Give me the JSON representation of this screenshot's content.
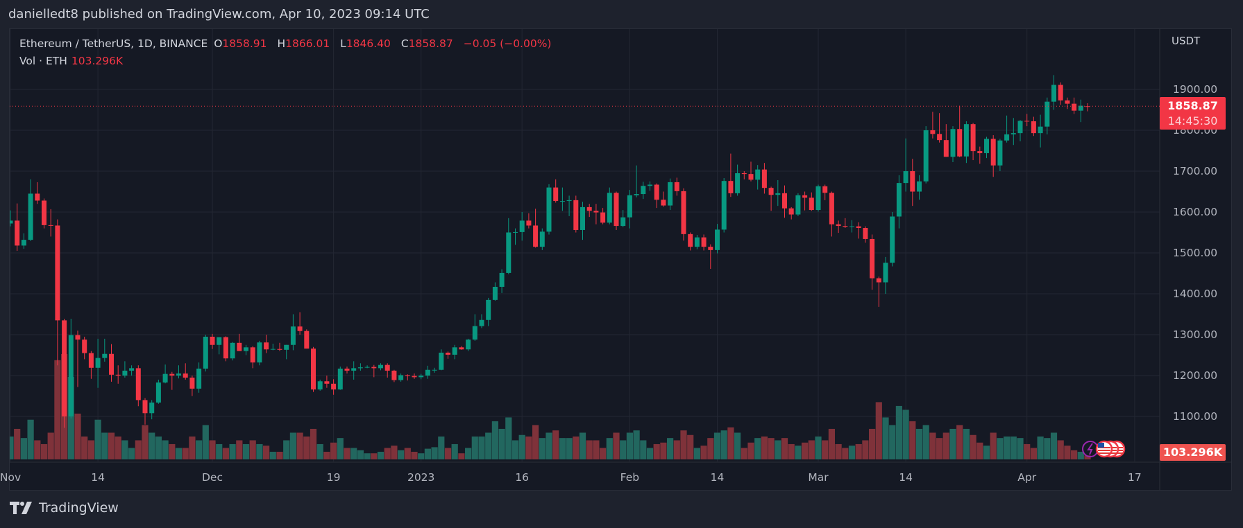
{
  "header": {
    "published": "danielledt8 published on TradingView.com, Apr 10, 2023 09:14 UTC"
  },
  "legend": {
    "symbol": "Ethereum / TetherUS, 1D, BINANCE",
    "o_label": "O",
    "o": "1858.91",
    "h_label": "H",
    "h": "1866.01",
    "l_label": "L",
    "l": "1846.40",
    "c_label": "C",
    "c": "1858.87",
    "change": "−0.05 (−0.00%)",
    "vol_label": "Vol · ETH",
    "vol": "103.296K"
  },
  "axis": {
    "currency": "USDT",
    "last_price": "1858.87",
    "countdown": "14:45:30",
    "last_volume": "103.296K"
  },
  "footer": {
    "logo_text": "TradingView"
  },
  "colors": {
    "up": "#089981",
    "down": "#f23645",
    "vol_up": "#22675f",
    "vol_down": "#7f323a",
    "background": "#151924",
    "grid": "#232733"
  },
  "chart_data": {
    "type": "candlestick",
    "title": "Ethereum / TetherUS, 1D, BINANCE",
    "ylabel": "USDT",
    "ylim": [
      1000,
      2020
    ],
    "yticks": [
      "1100.00",
      "1200.00",
      "1300.00",
      "1400.00",
      "1500.00",
      "1600.00",
      "1700.00",
      "1800.00",
      "1900.00"
    ],
    "xticks": [
      {
        "date": "2022-11-01",
        "label": "Nov"
      },
      {
        "date": "2022-11-14",
        "label": "14"
      },
      {
        "date": "2022-12-01",
        "label": "Dec"
      },
      {
        "date": "2022-12-19",
        "label": "19"
      },
      {
        "date": "2023-01-01",
        "label": "2023"
      },
      {
        "date": "2023-01-16",
        "label": "16"
      },
      {
        "date": "2023-02-01",
        "label": "Feb"
      },
      {
        "date": "2023-02-14",
        "label": "14"
      },
      {
        "date": "2023-03-01",
        "label": "Mar"
      },
      {
        "date": "2023-03-14",
        "label": "14"
      },
      {
        "date": "2023-04-01",
        "label": "Apr"
      },
      {
        "date": "2023-04-17",
        "label": "17"
      }
    ],
    "grid": true,
    "volume_unit": "K ETH",
    "columns": [
      "date",
      "open",
      "high",
      "low",
      "close",
      "volume"
    ],
    "candles": [
      [
        "2022-11-01",
        1572,
        1604,
        1565,
        1579,
        600
      ],
      [
        "2022-11-02",
        1579,
        1621,
        1505,
        1518,
        800
      ],
      [
        "2022-11-03",
        1518,
        1548,
        1510,
        1532,
        560
      ],
      [
        "2022-11-04",
        1532,
        1680,
        1529,
        1645,
        1040
      ],
      [
        "2022-11-05",
        1645,
        1673,
        1620,
        1628,
        500
      ],
      [
        "2022-11-06",
        1628,
        1633,
        1560,
        1568,
        400
      ],
      [
        "2022-11-07",
        1568,
        1607,
        1540,
        1567,
        700
      ],
      [
        "2022-11-08",
        1567,
        1582,
        1225,
        1335,
        2600
      ],
      [
        "2022-11-09",
        1335,
        1339,
        1072,
        1100,
        2760
      ],
      [
        "2022-11-10",
        1100,
        1339,
        1095,
        1299,
        2160
      ],
      [
        "2022-11-11",
        1299,
        1310,
        1172,
        1288,
        1200
      ],
      [
        "2022-11-12",
        1288,
        1295,
        1240,
        1255,
        600
      ],
      [
        "2022-11-13",
        1255,
        1260,
        1192,
        1219,
        500
      ],
      [
        "2022-11-14",
        1219,
        1290,
        1170,
        1243,
        1040
      ],
      [
        "2022-11-15",
        1243,
        1290,
        1234,
        1253,
        700
      ],
      [
        "2022-11-16",
        1253,
        1277,
        1185,
        1202,
        700
      ],
      [
        "2022-11-17",
        1202,
        1225,
        1180,
        1200,
        600
      ],
      [
        "2022-11-18",
        1200,
        1235,
        1195,
        1212,
        500
      ],
      [
        "2022-11-19",
        1212,
        1225,
        1200,
        1218,
        300
      ],
      [
        "2022-11-20",
        1218,
        1225,
        1125,
        1140,
        500
      ],
      [
        "2022-11-21",
        1140,
        1145,
        1080,
        1108,
        900
      ],
      [
        "2022-11-22",
        1108,
        1140,
        1093,
        1134,
        700
      ],
      [
        "2022-11-23",
        1134,
        1190,
        1131,
        1183,
        600
      ],
      [
        "2022-11-24",
        1183,
        1227,
        1181,
        1204,
        500
      ],
      [
        "2022-11-25",
        1204,
        1209,
        1165,
        1200,
        400
      ],
      [
        "2022-11-26",
        1200,
        1225,
        1193,
        1205,
        300
      ],
      [
        "2022-11-27",
        1205,
        1230,
        1190,
        1195,
        300
      ],
      [
        "2022-11-28",
        1195,
        1200,
        1150,
        1168,
        600
      ],
      [
        "2022-11-29",
        1168,
        1232,
        1158,
        1217,
        500
      ],
      [
        "2022-11-30",
        1217,
        1300,
        1210,
        1295,
        900
      ],
      [
        "2022-12-01",
        1295,
        1302,
        1265,
        1275,
        500
      ],
      [
        "2022-12-02",
        1275,
        1290,
        1252,
        1294,
        400
      ],
      [
        "2022-12-03",
        1294,
        1296,
        1235,
        1242,
        300
      ],
      [
        "2022-12-04",
        1242,
        1282,
        1237,
        1280,
        400
      ],
      [
        "2022-12-05",
        1280,
        1302,
        1260,
        1260,
        500
      ],
      [
        "2022-12-06",
        1260,
        1275,
        1250,
        1269,
        400
      ],
      [
        "2022-12-07",
        1269,
        1272,
        1218,
        1232,
        500
      ],
      [
        "2022-12-08",
        1232,
        1285,
        1225,
        1281,
        400
      ],
      [
        "2022-12-09",
        1281,
        1300,
        1255,
        1264,
        360
      ],
      [
        "2022-12-10",
        1264,
        1278,
        1262,
        1265,
        200
      ],
      [
        "2022-12-11",
        1265,
        1280,
        1260,
        1263,
        200
      ],
      [
        "2022-12-12",
        1263,
        1275,
        1240,
        1275,
        500
      ],
      [
        "2022-12-13",
        1275,
        1350,
        1262,
        1320,
        700
      ],
      [
        "2022-12-14",
        1320,
        1355,
        1300,
        1309,
        700
      ],
      [
        "2022-12-15",
        1309,
        1313,
        1266,
        1266,
        600
      ],
      [
        "2022-12-16",
        1266,
        1270,
        1160,
        1166,
        800
      ],
      [
        "2022-12-17",
        1166,
        1190,
        1163,
        1186,
        400
      ],
      [
        "2022-12-18",
        1186,
        1200,
        1170,
        1180,
        200
      ],
      [
        "2022-12-19",
        1180,
        1191,
        1153,
        1166,
        440
      ],
      [
        "2022-12-20",
        1166,
        1222,
        1165,
        1217,
        560
      ],
      [
        "2022-12-21",
        1217,
        1222,
        1205,
        1212,
        300
      ],
      [
        "2022-12-22",
        1212,
        1235,
        1190,
        1218,
        300
      ],
      [
        "2022-12-23",
        1218,
        1230,
        1212,
        1220,
        240
      ],
      [
        "2022-12-24",
        1220,
        1225,
        1218,
        1221,
        160
      ],
      [
        "2022-12-25",
        1221,
        1226,
        1196,
        1218,
        160
      ],
      [
        "2022-12-26",
        1218,
        1230,
        1213,
        1226,
        200
      ],
      [
        "2022-12-27",
        1226,
        1230,
        1195,
        1212,
        300
      ],
      [
        "2022-12-28",
        1212,
        1214,
        1184,
        1189,
        360
      ],
      [
        "2022-12-29",
        1189,
        1205,
        1185,
        1201,
        240
      ],
      [
        "2022-12-30",
        1201,
        1203,
        1188,
        1199,
        300
      ],
      [
        "2022-12-31",
        1199,
        1205,
        1192,
        1196,
        200
      ],
      [
        "2023-01-01",
        1196,
        1204,
        1191,
        1200,
        160
      ],
      [
        "2023-01-02",
        1200,
        1224,
        1192,
        1214,
        280
      ],
      [
        "2023-01-03",
        1214,
        1219,
        1207,
        1214,
        320
      ],
      [
        "2023-01-04",
        1214,
        1264,
        1213,
        1256,
        600
      ],
      [
        "2023-01-05",
        1256,
        1259,
        1241,
        1251,
        300
      ],
      [
        "2023-01-06",
        1251,
        1275,
        1240,
        1269,
        400
      ],
      [
        "2023-01-07",
        1269,
        1272,
        1263,
        1264,
        160
      ],
      [
        "2023-01-08",
        1264,
        1290,
        1260,
        1288,
        300
      ],
      [
        "2023-01-09",
        1288,
        1350,
        1285,
        1321,
        600
      ],
      [
        "2023-01-10",
        1321,
        1350,
        1316,
        1336,
        600
      ],
      [
        "2023-01-11",
        1336,
        1390,
        1321,
        1385,
        700
      ],
      [
        "2023-01-12",
        1385,
        1428,
        1383,
        1417,
        1000
      ],
      [
        "2023-01-13",
        1417,
        1460,
        1402,
        1451,
        800
      ],
      [
        "2023-01-14",
        1451,
        1585,
        1448,
        1550,
        1100
      ],
      [
        "2023-01-15",
        1550,
        1560,
        1520,
        1551,
        500
      ],
      [
        "2023-01-16",
        1551,
        1600,
        1530,
        1579,
        640
      ],
      [
        "2023-01-17",
        1579,
        1597,
        1560,
        1567,
        600
      ],
      [
        "2023-01-18",
        1567,
        1608,
        1513,
        1515,
        900
      ],
      [
        "2023-01-19",
        1515,
        1560,
        1507,
        1552,
        560
      ],
      [
        "2023-01-20",
        1552,
        1668,
        1545,
        1660,
        700
      ],
      [
        "2023-01-21",
        1660,
        1680,
        1623,
        1627,
        760
      ],
      [
        "2023-01-22",
        1627,
        1660,
        1603,
        1627,
        560
      ],
      [
        "2023-01-23",
        1627,
        1640,
        1590,
        1629,
        560
      ],
      [
        "2023-01-24",
        1629,
        1640,
        1550,
        1556,
        600
      ],
      [
        "2023-01-25",
        1556,
        1625,
        1532,
        1612,
        700
      ],
      [
        "2023-01-26",
        1612,
        1620,
        1588,
        1603,
        500
      ],
      [
        "2023-01-27",
        1603,
        1620,
        1570,
        1599,
        500
      ],
      [
        "2023-01-28",
        1599,
        1610,
        1570,
        1574,
        300
      ],
      [
        "2023-01-29",
        1574,
        1660,
        1570,
        1647,
        560
      ],
      [
        "2023-01-30",
        1647,
        1650,
        1556,
        1566,
        700
      ],
      [
        "2023-01-31",
        1566,
        1605,
        1563,
        1587,
        500
      ],
      [
        "2023-02-01",
        1587,
        1654,
        1560,
        1641,
        700
      ],
      [
        "2023-02-02",
        1641,
        1714,
        1636,
        1644,
        760
      ],
      [
        "2023-02-03",
        1644,
        1674,
        1632,
        1664,
        500
      ],
      [
        "2023-02-04",
        1664,
        1675,
        1652,
        1667,
        300
      ],
      [
        "2023-02-05",
        1667,
        1670,
        1610,
        1630,
        400
      ],
      [
        "2023-02-06",
        1630,
        1650,
        1613,
        1616,
        440
      ],
      [
        "2023-02-07",
        1616,
        1682,
        1605,
        1673,
        560
      ],
      [
        "2023-02-08",
        1673,
        1684,
        1640,
        1651,
        500
      ],
      [
        "2023-02-09",
        1651,
        1658,
        1530,
        1546,
        760
      ],
      [
        "2023-02-10",
        1546,
        1550,
        1506,
        1515,
        640
      ],
      [
        "2023-02-11",
        1515,
        1544,
        1509,
        1538,
        300
      ],
      [
        "2023-02-12",
        1538,
        1545,
        1506,
        1515,
        360
      ],
      [
        "2023-02-13",
        1515,
        1521,
        1461,
        1507,
        560
      ],
      [
        "2023-02-14",
        1507,
        1571,
        1499,
        1557,
        700
      ],
      [
        "2023-02-15",
        1557,
        1683,
        1550,
        1676,
        760
      ],
      [
        "2023-02-16",
        1676,
        1743,
        1637,
        1646,
        840
      ],
      [
        "2023-02-17",
        1646,
        1716,
        1640,
        1695,
        700
      ],
      [
        "2023-02-18",
        1695,
        1700,
        1680,
        1693,
        300
      ],
      [
        "2023-02-19",
        1693,
        1723,
        1675,
        1679,
        440
      ],
      [
        "2023-02-20",
        1679,
        1715,
        1655,
        1704,
        560
      ],
      [
        "2023-02-21",
        1704,
        1720,
        1645,
        1659,
        600
      ],
      [
        "2023-02-22",
        1659,
        1662,
        1603,
        1642,
        560
      ],
      [
        "2023-02-23",
        1642,
        1678,
        1615,
        1646,
        500
      ],
      [
        "2023-02-24",
        1646,
        1665,
        1586,
        1609,
        560
      ],
      [
        "2023-02-25",
        1609,
        1612,
        1582,
        1594,
        400
      ],
      [
        "2023-02-26",
        1594,
        1646,
        1590,
        1641,
        360
      ],
      [
        "2023-02-27",
        1641,
        1650,
        1604,
        1635,
        440
      ],
      [
        "2023-02-28",
        1635,
        1648,
        1603,
        1605,
        500
      ],
      [
        "2023-03-01",
        1605,
        1667,
        1601,
        1663,
        600
      ],
      [
        "2023-03-02",
        1663,
        1667,
        1629,
        1647,
        500
      ],
      [
        "2023-03-03",
        1647,
        1650,
        1540,
        1570,
        800
      ],
      [
        "2023-03-04",
        1570,
        1579,
        1549,
        1566,
        400
      ],
      [
        "2023-03-05",
        1566,
        1585,
        1561,
        1564,
        300
      ],
      [
        "2023-03-06",
        1564,
        1580,
        1550,
        1565,
        360
      ],
      [
        "2023-03-07",
        1565,
        1575,
        1535,
        1561,
        400
      ],
      [
        "2023-03-08",
        1561,
        1565,
        1525,
        1534,
        500
      ],
      [
        "2023-03-09",
        1534,
        1545,
        1410,
        1438,
        800
      ],
      [
        "2023-03-10",
        1438,
        1442,
        1368,
        1428,
        1500
      ],
      [
        "2023-03-11",
        1428,
        1490,
        1400,
        1476,
        1100
      ],
      [
        "2023-03-12",
        1476,
        1600,
        1467,
        1589,
        900
      ],
      [
        "2023-03-13",
        1589,
        1690,
        1560,
        1671,
        1400
      ],
      [
        "2023-03-14",
        1671,
        1780,
        1650,
        1700,
        1300
      ],
      [
        "2023-03-15",
        1700,
        1730,
        1615,
        1650,
        1000
      ],
      [
        "2023-03-16",
        1650,
        1690,
        1630,
        1675,
        800
      ],
      [
        "2023-03-17",
        1675,
        1810,
        1670,
        1800,
        900
      ],
      [
        "2023-03-18",
        1800,
        1845,
        1780,
        1791,
        700
      ],
      [
        "2023-03-19",
        1791,
        1842,
        1770,
        1776,
        560
      ],
      [
        "2023-03-20",
        1776,
        1815,
        1735,
        1735,
        700
      ],
      [
        "2023-03-21",
        1735,
        1810,
        1722,
        1803,
        800
      ],
      [
        "2023-03-22",
        1803,
        1860,
        1734,
        1736,
        900
      ],
      [
        "2023-03-23",
        1736,
        1822,
        1720,
        1815,
        800
      ],
      [
        "2023-03-24",
        1815,
        1818,
        1727,
        1749,
        640
      ],
      [
        "2023-03-25",
        1749,
        1760,
        1718,
        1744,
        440
      ],
      [
        "2023-03-26",
        1744,
        1784,
        1732,
        1779,
        360
      ],
      [
        "2023-03-27",
        1779,
        1788,
        1686,
        1714,
        700
      ],
      [
        "2023-03-28",
        1714,
        1779,
        1700,
        1775,
        560
      ],
      [
        "2023-03-29",
        1775,
        1836,
        1770,
        1790,
        600
      ],
      [
        "2023-03-30",
        1790,
        1830,
        1764,
        1793,
        600
      ],
      [
        "2023-03-31",
        1793,
        1825,
        1773,
        1823,
        560
      ],
      [
        "2023-04-01",
        1823,
        1840,
        1810,
        1822,
        400
      ],
      [
        "2023-04-02",
        1822,
        1833,
        1786,
        1793,
        300
      ],
      [
        "2023-04-03",
        1793,
        1838,
        1758,
        1809,
        600
      ],
      [
        "2023-04-04",
        1809,
        1880,
        1790,
        1870,
        560
      ],
      [
        "2023-04-05",
        1870,
        1935,
        1850,
        1911,
        700
      ],
      [
        "2023-04-06",
        1911,
        1917,
        1862,
        1873,
        500
      ],
      [
        "2023-04-07",
        1873,
        1880,
        1852,
        1865,
        360
      ],
      [
        "2023-04-08",
        1865,
        1880,
        1840,
        1848,
        240
      ],
      [
        "2023-04-09",
        1848,
        1875,
        1820,
        1860,
        200
      ],
      [
        "2023-04-10",
        1858.91,
        1866.01,
        1846.4,
        1858.87,
        103.296
      ]
    ]
  }
}
